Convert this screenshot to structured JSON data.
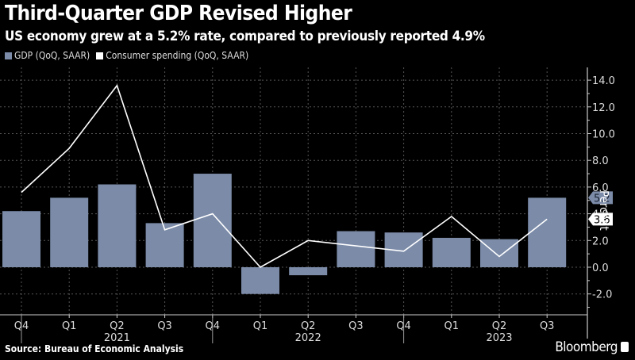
{
  "chart_data": {
    "type": "bar",
    "title": "Third-Quarter GDP Revised Higher",
    "subtitle": "US economy grew at a 5.2% rate, compared to previously reported 4.9%",
    "categories": [
      "Q4",
      "Q1",
      "Q2",
      "Q3",
      "Q4",
      "Q1",
      "Q2",
      "Q3",
      "Q4",
      "Q1",
      "Q2",
      "Q3"
    ],
    "years": [
      {
        "label": "2021",
        "center_index": 2
      },
      {
        "label": "2022",
        "center_index": 6
      },
      {
        "label": "2023",
        "center_index": 10
      }
    ],
    "series": [
      {
        "name": "GDP (QoQ, SAAR)",
        "type": "bar",
        "color": "#7b8ba8",
        "values": [
          4.2,
          5.2,
          6.2,
          3.3,
          7.0,
          -2.0,
          -0.6,
          2.7,
          2.6,
          2.2,
          2.1,
          5.2
        ]
      },
      {
        "name": "Consumer spending (QoQ, SAAR)",
        "type": "line",
        "color": "#ffffff",
        "values": [
          5.6,
          8.9,
          13.6,
          2.8,
          4.0,
          0.0,
          2.0,
          1.6,
          1.2,
          3.8,
          0.8,
          3.6
        ]
      }
    ],
    "ylabel": "Percent",
    "ylim": [
      -3.5,
      15.0
    ],
    "yticks": [
      "14.0",
      "12.0",
      "10.0",
      "8.0",
      "6.0",
      "4.0",
      "2.0",
      "0.0",
      "-2.0"
    ],
    "ytick_values": [
      14,
      12,
      10,
      8,
      6,
      4,
      2,
      0,
      -2
    ],
    "last_value_labels": [
      {
        "series": "GDP (QoQ, SAAR)",
        "text": "5.2"
      },
      {
        "series": "Consumer spending (QoQ, SAAR)",
        "text": "3.6"
      }
    ],
    "grid": true,
    "legend_position": "top-left",
    "source": "Source: Bureau of Economic Analysis",
    "brand": "Bloomberg"
  }
}
